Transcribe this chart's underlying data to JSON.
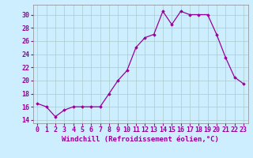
{
  "x": [
    0,
    1,
    2,
    3,
    4,
    5,
    6,
    7,
    8,
    9,
    10,
    11,
    12,
    13,
    14,
    15,
    16,
    17,
    18,
    19,
    20,
    21,
    22,
    23
  ],
  "y": [
    16.5,
    16.0,
    14.5,
    15.5,
    16.0,
    16.0,
    16.0,
    16.0,
    18.0,
    20.0,
    21.5,
    25.0,
    26.5,
    27.0,
    30.5,
    28.5,
    30.5,
    30.0,
    30.0,
    30.0,
    27.0,
    23.5,
    20.5,
    19.5
  ],
  "line_color": "#990099",
  "marker": "D",
  "marker_size": 1.8,
  "bg_color": "#cceeff",
  "grid_color": "#aacccc",
  "xlabel": "Windchill (Refroidissement éolien,°C)",
  "xlabel_color": "#990099",
  "xlabel_fontsize": 6.5,
  "tick_color": "#990099",
  "tick_fontsize": 6.0,
  "ytick_interval": 2,
  "ylim": [
    13.5,
    31.5
  ],
  "xlim": [
    -0.5,
    23.5
  ],
  "xticks": [
    0,
    1,
    2,
    3,
    4,
    5,
    6,
    7,
    8,
    9,
    10,
    11,
    12,
    13,
    14,
    15,
    16,
    17,
    18,
    19,
    20,
    21,
    22,
    23
  ]
}
